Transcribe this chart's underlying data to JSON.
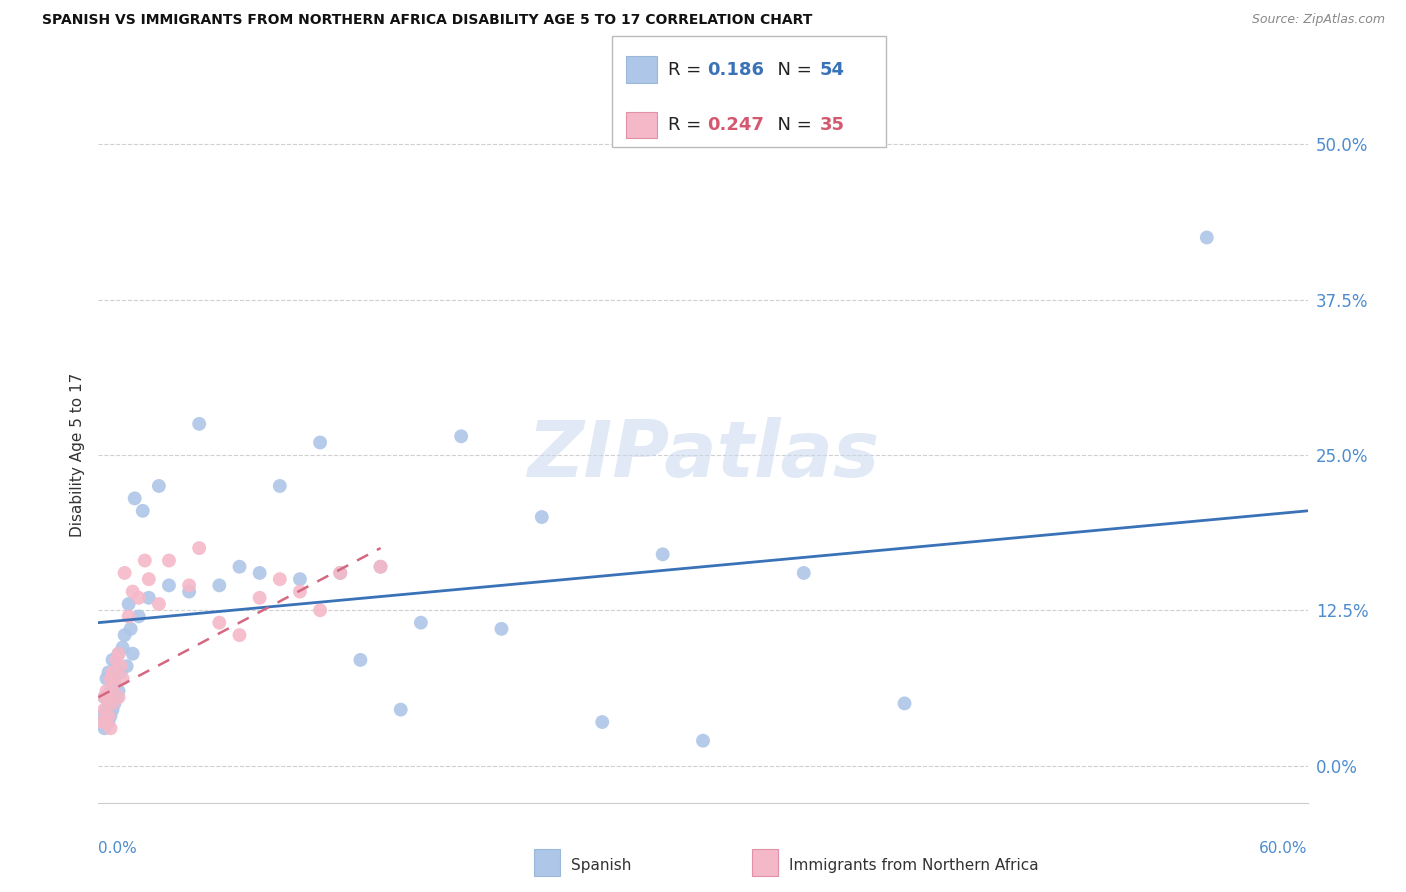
{
  "title": "SPANISH VS IMMIGRANTS FROM NORTHERN AFRICA DISABILITY AGE 5 TO 17 CORRELATION CHART",
  "source": "Source: ZipAtlas.com",
  "ylabel": "Disability Age 5 to 17",
  "xlim": [
    0.0,
    60.0
  ],
  "ylim": [
    -3.0,
    53.0
  ],
  "ytick_values": [
    0.0,
    12.5,
    25.0,
    37.5,
    50.0
  ],
  "axis_color": "#4e8cce",
  "spanish_color": "#aec6e8",
  "immigrants_color": "#f4b8c8",
  "trend_spanish_color": "#3a72b8",
  "trend_immigrants_color": "#d46880",
  "watermark": "ZIPatlas",
  "legend_r1": "0.186",
  "legend_n1": "54",
  "legend_r2": "0.247",
  "legend_n2": "35",
  "spanish_x": [
    0.2,
    0.3,
    0.3,
    0.4,
    0.4,
    0.5,
    0.5,
    0.5,
    0.6,
    0.6,
    0.7,
    0.7,
    0.7,
    0.8,
    0.8,
    0.9,
    0.9,
    1.0,
    1.0,
    1.1,
    1.2,
    1.3,
    1.4,
    1.5,
    1.6,
    1.7,
    1.8,
    2.0,
    2.2,
    2.5,
    3.0,
    3.5,
    4.5,
    5.0,
    6.0,
    7.0,
    8.0,
    9.0,
    10.0,
    11.0,
    12.0,
    13.0,
    14.0,
    15.0,
    16.0,
    18.0,
    20.0,
    22.0,
    25.0,
    28.0,
    30.0,
    35.0,
    40.0,
    55.0
  ],
  "spanish_y": [
    4.0,
    3.0,
    5.5,
    4.5,
    7.0,
    3.5,
    5.0,
    7.5,
    4.0,
    6.0,
    4.5,
    6.5,
    8.5,
    5.0,
    7.0,
    5.5,
    8.0,
    6.0,
    9.0,
    7.5,
    9.5,
    10.5,
    8.0,
    13.0,
    11.0,
    9.0,
    21.5,
    12.0,
    20.5,
    13.5,
    22.5,
    14.5,
    14.0,
    27.5,
    14.5,
    16.0,
    15.5,
    22.5,
    15.0,
    26.0,
    15.5,
    8.5,
    16.0,
    4.5,
    11.5,
    26.5,
    11.0,
    20.0,
    3.5,
    17.0,
    2.0,
    15.5,
    5.0,
    42.5
  ],
  "immigrants_x": [
    0.2,
    0.3,
    0.3,
    0.4,
    0.4,
    0.5,
    0.5,
    0.6,
    0.6,
    0.7,
    0.7,
    0.8,
    0.9,
    1.0,
    1.0,
    1.1,
    1.2,
    1.3,
    1.5,
    1.7,
    2.0,
    2.3,
    2.5,
    3.0,
    3.5,
    4.5,
    5.0,
    6.0,
    7.0,
    8.0,
    9.0,
    10.0,
    11.0,
    12.0,
    14.0
  ],
  "immigrants_y": [
    3.5,
    4.5,
    5.5,
    3.5,
    6.0,
    4.0,
    5.5,
    3.0,
    7.0,
    5.0,
    7.5,
    6.5,
    8.5,
    5.5,
    9.0,
    8.0,
    7.0,
    15.5,
    12.0,
    14.0,
    13.5,
    16.5,
    15.0,
    13.0,
    16.5,
    14.5,
    17.5,
    11.5,
    10.5,
    13.5,
    15.0,
    14.0,
    12.5,
    15.5,
    16.0
  ],
  "spanish_trend_x": [
    0.0,
    60.0
  ],
  "spanish_trend_y": [
    11.5,
    20.5
  ],
  "immigrants_trend_x": [
    0.0,
    14.0
  ],
  "immigrants_trend_y": [
    5.5,
    17.5
  ]
}
